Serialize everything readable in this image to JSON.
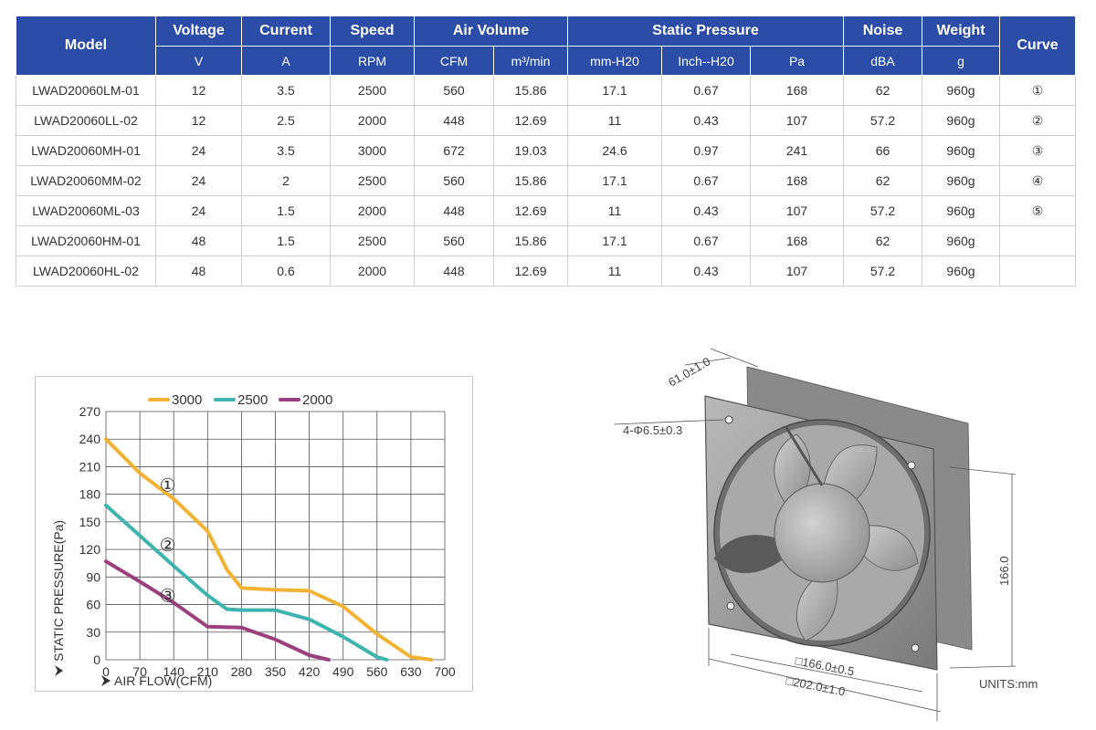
{
  "table": {
    "headers": {
      "model": "Model",
      "voltage": "Voltage",
      "current": "Current",
      "speed": "Speed",
      "air_volume": "Air Volume",
      "static_pressure": "Static Pressure",
      "noise": "Noise",
      "weight": "Weight",
      "curve": "Curve"
    },
    "units": [
      "V",
      "A",
      "RPM",
      "CFM",
      "m³/min",
      "mm-H20",
      "Inch--H20",
      "Pa",
      "dBA",
      "g"
    ],
    "rows": [
      [
        "LWAD20060LM-01",
        "12",
        "3.5",
        "2500",
        "560",
        "15.86",
        "17.1",
        "0.67",
        "168",
        "62",
        "960g",
        "①"
      ],
      [
        "LWAD20060LL-02",
        "12",
        "2.5",
        "2000",
        "448",
        "12.69",
        "11",
        "0.43",
        "107",
        "57.2",
        "960g",
        "②"
      ],
      [
        "LWAD20060MH-01",
        "24",
        "3.5",
        "3000",
        "672",
        "19.03",
        "24.6",
        "0.97",
        "241",
        "66",
        "960g",
        "③"
      ],
      [
        "LWAD20060MM-02",
        "24",
        "2",
        "2500",
        "560",
        "15.86",
        "17.1",
        "0.67",
        "168",
        "62",
        "960g",
        "④"
      ],
      [
        "LWAD20060ML-03",
        "24",
        "1.5",
        "2000",
        "448",
        "12.69",
        "11",
        "0.43",
        "107",
        "57.2",
        "960g",
        "⑤"
      ],
      [
        "LWAD20060HM-01",
        "48",
        "1.5",
        "2500",
        "560",
        "15.86",
        "17.1",
        "0.67",
        "168",
        "62",
        "960g",
        ""
      ],
      [
        "LWAD20060HL-02",
        "48",
        "0.6",
        "2000",
        "448",
        "12.69",
        "11",
        "0.43",
        "107",
        "57.2",
        "960g",
        ""
      ]
    ]
  },
  "chart_data": {
    "type": "line",
    "xlabel": "AIR FLOW(CFM)",
    "ylabel": "STATIC PRESSURE(Pa)",
    "xlim": [
      0,
      700
    ],
    "ylim": [
      0,
      270
    ],
    "xticks": [
      "0",
      "70",
      "140",
      "210",
      "280",
      "350",
      "420",
      "490",
      "560",
      "630",
      "700"
    ],
    "yticks": [
      "0",
      "30",
      "60",
      "90",
      "120",
      "150",
      "180",
      "210",
      "240",
      "270"
    ],
    "grid": true,
    "legend_position": "top",
    "series": [
      {
        "name": "3000",
        "color": "#f2b233",
        "marker": "①",
        "marker_at": [
          105,
          190
        ],
        "points": [
          [
            0,
            240
          ],
          [
            70,
            203
          ],
          [
            140,
            175
          ],
          [
            210,
            140
          ],
          [
            250,
            98
          ],
          [
            280,
            78
          ],
          [
            350,
            76
          ],
          [
            420,
            75
          ],
          [
            490,
            58
          ],
          [
            560,
            28
          ],
          [
            630,
            3
          ],
          [
            672,
            0
          ]
        ]
      },
      {
        "name": "2500",
        "color": "#3fb3ae",
        "marker": "②",
        "marker_at": [
          105,
          125
        ],
        "points": [
          [
            0,
            168
          ],
          [
            70,
            135
          ],
          [
            140,
            102
          ],
          [
            210,
            70
          ],
          [
            250,
            55
          ],
          [
            280,
            54
          ],
          [
            350,
            54
          ],
          [
            420,
            44
          ],
          [
            490,
            25
          ],
          [
            560,
            3
          ],
          [
            580,
            0
          ]
        ]
      },
      {
        "name": "2000",
        "color": "#9b3f7e",
        "marker": "③",
        "marker_at": [
          105,
          70
        ],
        "points": [
          [
            0,
            107
          ],
          [
            70,
            85
          ],
          [
            140,
            62
          ],
          [
            210,
            36
          ],
          [
            280,
            35
          ],
          [
            350,
            22
          ],
          [
            420,
            5
          ],
          [
            460,
            0
          ]
        ]
      }
    ]
  },
  "drawing": {
    "dim_depth": "61.0±1.0",
    "dim_holes": "4-Φ6.5±0.3",
    "dim_height": "166.0",
    "dim_hole_spacing": "□166.0±0.5",
    "dim_width": "□202.0±1.0",
    "units_label": "UNITS:mm"
  }
}
